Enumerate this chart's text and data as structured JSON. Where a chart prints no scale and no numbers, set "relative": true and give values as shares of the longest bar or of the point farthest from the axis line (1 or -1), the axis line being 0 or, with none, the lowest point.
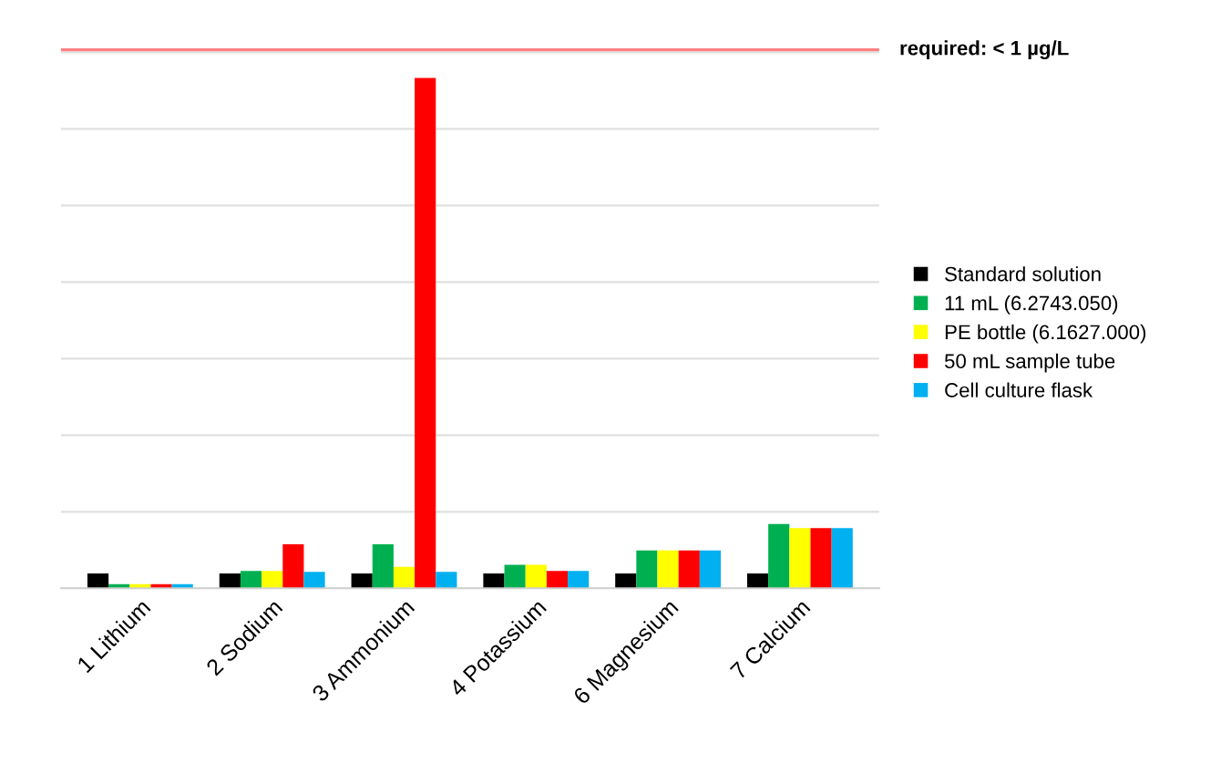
{
  "chart_data": {
    "type": "bar",
    "relative": true,
    "categories": [
      "1 Lithium",
      "2 Sodium",
      "3 Ammonium",
      "4 Potassium",
      "6 Magnesium",
      "7 Calcium"
    ],
    "series": [
      {
        "name": "Standard solution",
        "color": "#000000",
        "values": [
          0.029,
          0.029,
          0.029,
          0.029,
          0.029,
          0.029
        ]
      },
      {
        "name": "11 mL (6.2743.050)",
        "color": "#00b050",
        "values": [
          0.008,
          0.034,
          0.086,
          0.046,
          0.074,
          0.126
        ]
      },
      {
        "name": "PE bottle (6.1627.000)",
        "color": "#ffff00",
        "values": [
          0.008,
          0.034,
          0.042,
          0.046,
          0.074,
          0.118
        ]
      },
      {
        "name": "50 mL sample tube",
        "color": "#ff0000",
        "values": [
          0.008,
          0.086,
          1,
          0.034,
          0.074,
          0.118
        ]
      },
      {
        "name": "Cell culture flask",
        "color": "#00b0f0",
        "values": [
          0.008,
          0.032,
          0.032,
          0.034,
          0.074,
          0.118
        ]
      }
    ],
    "ref_lines": [
      {
        "axis": "y",
        "value": 1.055,
        "label": "required: < 1 µg/L",
        "color": "#ff7f7f"
      }
    ],
    "grid": "y",
    "legend": "right"
  }
}
